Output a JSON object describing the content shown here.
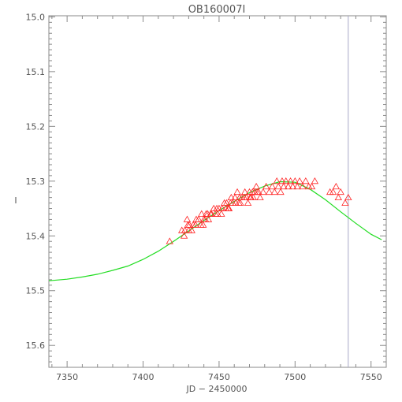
{
  "title": "OB160007I",
  "colors": {
    "axes": "#8a8a8a",
    "text": "#555555",
    "model": "#22dd22",
    "data": "#ff2222",
    "marker": "#a8a8c8"
  },
  "chart_data": {
    "type": "scatter",
    "title": "OB160007I",
    "xlabel": "JD − 2450000",
    "ylabel": "I",
    "xlim": [
      7338,
      7560
    ],
    "ylim": [
      15.64,
      14.998
    ],
    "y_inverted": true,
    "grid": false,
    "x_ticks": [
      7350,
      7400,
      7450,
      7500,
      7550
    ],
    "x_tick_labels": [
      "7350",
      "7400",
      "7450",
      "7500",
      "7550"
    ],
    "y_ticks": [
      15.0,
      15.1,
      15.2,
      15.3,
      15.4,
      15.5,
      15.6
    ],
    "y_tick_labels": [
      "15.0",
      "15.1",
      "15.2",
      "15.3",
      "15.4",
      "15.5",
      "15.6"
    ],
    "vertical_marker_x": 7535,
    "series": [
      {
        "type": "scatter",
        "marker": "triangle",
        "x": [
          7417.5,
          7425.5,
          7427.0,
          7427.5,
          7429.0,
          7429.5,
          7430.0,
          7430.5,
          7432.0,
          7433.0,
          7434.5,
          7435.0,
          7436.5,
          7438.0,
          7438.5,
          7439.5,
          7440.0,
          7441.0,
          7442.5,
          7443.0,
          7444.5,
          7445.0,
          7446.5,
          7447.5,
          7448.5,
          7449.0,
          7450.0,
          7451.5,
          7452.0,
          7453.5,
          7454.5,
          7455.0,
          7456.0,
          7457.5,
          7458.0,
          7459.0,
          7460.5,
          7461.0,
          7462.0,
          7463.5,
          7464.0,
          7465.0,
          7466.5,
          7467.0,
          7468.0,
          7469.0,
          7470.0,
          7471.0,
          7472.0,
          7472.5,
          7473.5,
          7474.5,
          7475.0,
          7477.0,
          7479.0,
          7481.0,
          7483.0,
          7485.0,
          7486.5,
          7488.0,
          7489.0,
          7490.5,
          7491.5,
          7492.5,
          7494.0,
          7495.5,
          7497.0,
          7498.5,
          7500.0,
          7501.5,
          7503.0,
          7505.0,
          7507.0,
          7509.0,
          7511.0,
          7513.0,
          7523.0,
          7525.0,
          7527.0,
          7528.5,
          7530.0,
          7533.0,
          7535.0,
          7441.5,
          7456.5,
          7463.0,
          7470.5,
          7476.0
        ],
        "y": [
          15.41,
          15.39,
          15.4,
          15.39,
          15.37,
          15.38,
          15.39,
          15.38,
          15.39,
          15.38,
          15.38,
          15.37,
          15.37,
          15.38,
          15.36,
          15.38,
          15.37,
          15.37,
          15.36,
          15.37,
          15.36,
          15.36,
          15.35,
          15.36,
          15.35,
          15.36,
          15.35,
          15.36,
          15.35,
          15.34,
          15.35,
          15.34,
          15.35,
          15.34,
          15.33,
          15.34,
          15.33,
          15.34,
          15.32,
          15.33,
          15.34,
          15.33,
          15.33,
          15.32,
          15.33,
          15.34,
          15.32,
          15.33,
          15.32,
          15.33,
          15.32,
          15.31,
          15.32,
          15.33,
          15.32,
          15.31,
          15.32,
          15.31,
          15.32,
          15.3,
          15.31,
          15.32,
          15.3,
          15.31,
          15.3,
          15.31,
          15.3,
          15.31,
          15.3,
          15.31,
          15.3,
          15.31,
          15.3,
          15.31,
          15.31,
          15.3,
          15.32,
          15.32,
          15.31,
          15.33,
          15.32,
          15.34,
          15.33,
          15.36,
          15.35,
          15.34,
          15.33,
          15.32
        ]
      },
      {
        "type": "line",
        "x": [
          7338,
          7350,
          7360,
          7370,
          7380,
          7390,
          7400,
          7410,
          7420,
          7430,
          7440,
          7450,
          7460,
          7470,
          7480,
          7490,
          7500,
          7510,
          7520,
          7530,
          7540,
          7550,
          7557
        ],
        "y": [
          15.482,
          15.479,
          15.475,
          15.47,
          15.463,
          15.455,
          15.443,
          15.428,
          15.41,
          15.391,
          15.372,
          15.354,
          15.337,
          15.321,
          15.309,
          15.301,
          15.302,
          15.315,
          15.334,
          15.356,
          15.377,
          15.397,
          15.407
        ]
      }
    ]
  }
}
